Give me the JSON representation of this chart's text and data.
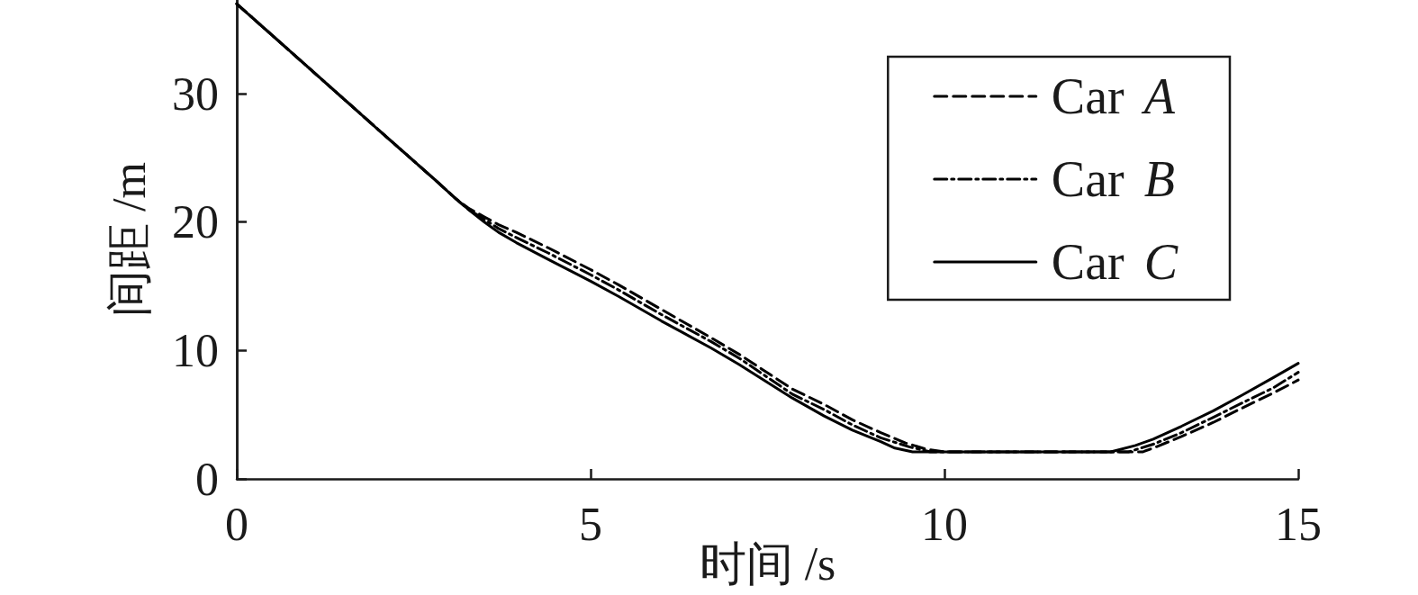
{
  "chart_data": {
    "type": "line",
    "xlabel": "时间 /s",
    "ylabel": "间距 /m",
    "xlim": [
      0,
      15
    ],
    "xticks": [
      0,
      5,
      10,
      15
    ],
    "ylim": [
      0,
      37.3
    ],
    "yticks": [
      0,
      10,
      20,
      30
    ],
    "legend": "top right",
    "series": [
      {
        "name": "Car A",
        "color": "#000000",
        "line_style": "dashed",
        "x": [
          0,
          1,
          2,
          2.8,
          3.1,
          3.27,
          3.5,
          3.7,
          3.95,
          4.4,
          5,
          5.4,
          6,
          6.7,
          7.1,
          7.85,
          8.3,
          8.7,
          9.1,
          9.45,
          9.75,
          10,
          12.8,
          12.95,
          13.35,
          13.8,
          14.2,
          14.65,
          15
        ],
        "values": [
          37,
          32.1,
          27.2,
          23.3,
          21.8,
          21.1,
          20.4,
          19.8,
          19.2,
          18.0,
          16.3,
          15.1,
          13.2,
          11.0,
          9.7,
          7.0,
          5.8,
          4.6,
          3.6,
          2.8,
          2.3,
          2.1,
          2.1,
          2.4,
          3.3,
          4.4,
          5.5,
          6.7,
          7.7
        ]
      },
      {
        "name": "Car B",
        "color": "#000000",
        "line_style": "dashdot",
        "x": [
          0,
          1,
          2,
          2.8,
          3.1,
          3.27,
          3.5,
          3.7,
          3.95,
          4.4,
          5,
          5.4,
          6,
          6.7,
          7.1,
          7.85,
          8.3,
          8.7,
          9.1,
          9.5,
          9.8,
          12.6,
          12.95,
          13.35,
          13.8,
          14.2,
          14.65,
          15
        ],
        "values": [
          37,
          32.1,
          27.2,
          23.3,
          21.8,
          21.0,
          20.2,
          19.5,
          18.8,
          17.6,
          15.9,
          14.7,
          12.8,
          10.7,
          9.4,
          6.6,
          5.4,
          4.2,
          3.2,
          2.5,
          2.1,
          2.1,
          2.7,
          3.6,
          4.8,
          5.9,
          7.1,
          8.3
        ]
      },
      {
        "name": "Car C",
        "color": "#000000",
        "line_style": "solid",
        "x": [
          0,
          1,
          2,
          2.8,
          3.1,
          3.27,
          3.5,
          3.7,
          3.95,
          4.4,
          5,
          5.4,
          6,
          6.7,
          7.1,
          7.85,
          8.3,
          8.7,
          9.1,
          9.3,
          9.55,
          12.35,
          12.7,
          12.95,
          13.35,
          13.8,
          14.2,
          14.65,
          15
        ],
        "values": [
          37,
          32.1,
          27.2,
          23.3,
          21.8,
          21.0,
          20.0,
          19.2,
          18.4,
          17.1,
          15.4,
          14.2,
          12.3,
          10.2,
          8.9,
          6.3,
          4.9,
          3.8,
          2.9,
          2.4,
          2.1,
          2.1,
          2.6,
          3.1,
          4.1,
          5.3,
          6.5,
          7.9,
          9.0
        ]
      }
    ]
  }
}
